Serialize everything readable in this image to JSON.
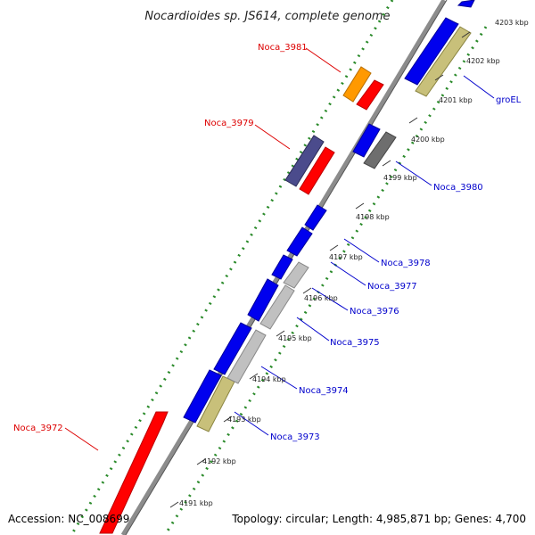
{
  "title": "Nocardioides sp. JS614, complete genome",
  "accession_text": "Accession: NC_008699",
  "topology_text": "Topology: circular; Length: 4,985,871 bp; Genes: 4,700",
  "colors": {
    "backbone": "#8c8c8c",
    "backbone_dark": "#555555",
    "dots": "#2a8a2a",
    "red": "#ff0000",
    "blue": "#0000ee",
    "orange": "#ff9900",
    "purple": "#4b4b8c",
    "khaki": "#c8c07a",
    "lightgray": "#c0c0c0",
    "darkgray": "#6e6e6e",
    "red_label": "#dd0000",
    "blue_label": "#0000cc"
  },
  "ticks": [
    "4191 kbp",
    "4192 kbp",
    "4193 kbp",
    "4194 kbp",
    "4195 kbp",
    "4196 kbp",
    "4197 kbp",
    "4198 kbp",
    "4199 kbp",
    "4200 kbp",
    "4201 kbp",
    "4202 kbp",
    "4203 kbp"
  ],
  "gene_labels": [
    {
      "text": "Noca_3972",
      "color": "red"
    },
    {
      "text": "Noca_3979",
      "color": "red"
    },
    {
      "text": "Noca_3981",
      "color": "red"
    },
    {
      "text": "groEL",
      "color": "blue"
    },
    {
      "text": "Noca_3980",
      "color": "blue"
    },
    {
      "text": "Noca_3978",
      "color": "blue"
    },
    {
      "text": "Noca_3977",
      "color": "blue"
    },
    {
      "text": "Noca_3976",
      "color": "blue"
    },
    {
      "text": "Noca_3975",
      "color": "blue"
    },
    {
      "text": "Noca_3974",
      "color": "blue"
    },
    {
      "text": "Noca_3973",
      "color": "blue"
    }
  ]
}
